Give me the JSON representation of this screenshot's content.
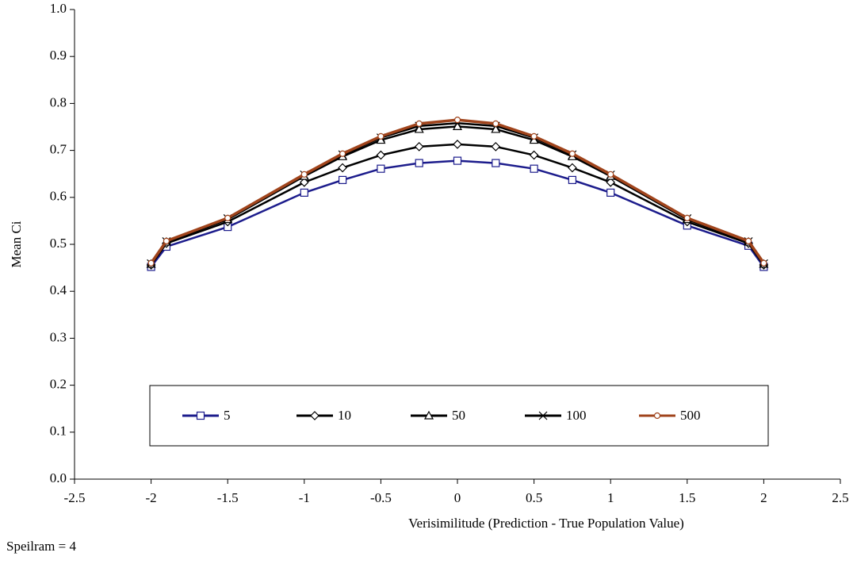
{
  "chart_data": {
    "type": "line",
    "x_label": "Verisimilitude (Prediction - True Population Value)",
    "y_label": "Mean Ci",
    "note": "Speilram = 4",
    "x": [
      -2,
      -1.9,
      -1.5,
      -1,
      -0.75,
      -0.5,
      -0.25,
      0,
      0.25,
      0.5,
      0.75,
      1,
      1.5,
      1.9,
      2
    ],
    "series": [
      {
        "name": "5",
        "color": "#1c1c8c",
        "marker": "square",
        "values": [
          0.452,
          0.495,
          0.537,
          0.61,
          0.637,
          0.661,
          0.673,
          0.678,
          0.673,
          0.661,
          0.637,
          0.61,
          0.54,
          0.497,
          0.452
        ]
      },
      {
        "name": "10",
        "color": "#000000",
        "marker": "diamond",
        "values": [
          0.456,
          0.502,
          0.548,
          0.632,
          0.663,
          0.69,
          0.708,
          0.713,
          0.708,
          0.69,
          0.663,
          0.632,
          0.548,
          0.502,
          0.456
        ]
      },
      {
        "name": "50",
        "color": "#000000",
        "marker": "triangle",
        "values": [
          0.458,
          0.505,
          0.553,
          0.645,
          0.687,
          0.722,
          0.745,
          0.751,
          0.745,
          0.722,
          0.687,
          0.645,
          0.553,
          0.505,
          0.458
        ]
      },
      {
        "name": "100",
        "color": "#000000",
        "marker": "x",
        "values": [
          0.459,
          0.506,
          0.555,
          0.648,
          0.691,
          0.727,
          0.752,
          0.758,
          0.752,
          0.727,
          0.691,
          0.648,
          0.555,
          0.506,
          0.459
        ]
      },
      {
        "name": "500",
        "color": "#a0441c",
        "marker": "circle",
        "values": [
          0.46,
          0.507,
          0.556,
          0.649,
          0.693,
          0.73,
          0.757,
          0.765,
          0.757,
          0.73,
          0.693,
          0.649,
          0.556,
          0.507,
          0.46
        ]
      }
    ],
    "xlim": [
      -2.5,
      2.5
    ],
    "xticks": [
      -2.5,
      -2,
      -1.5,
      -1,
      -0.5,
      0,
      0.5,
      1,
      1.5,
      2,
      2.5
    ],
    "ylim": [
      0,
      1
    ],
    "yticks": [
      {
        "value": 0,
        "label": "0.0"
      },
      0.1,
      0.2,
      0.3,
      0.4,
      0.5,
      0.6,
      0.7,
      0.8,
      0.9,
      {
        "value": 1,
        "label": "1.0"
      }
    ],
    "legend": "bottom"
  }
}
